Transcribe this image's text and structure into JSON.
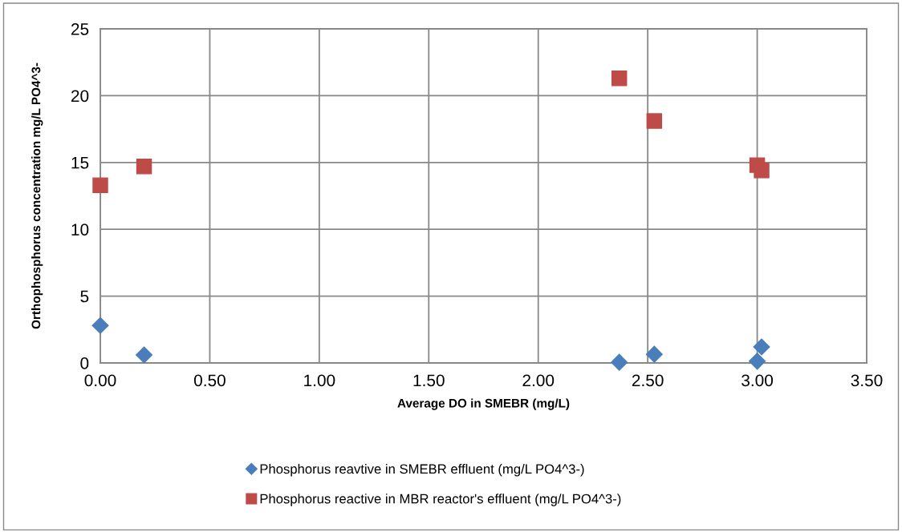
{
  "chart_data": {
    "type": "scatter",
    "xlabel": "Average DO in SMEBR (mg/L)",
    "ylabel": "Orthophosphorus concentration mg/L PO4^3-",
    "xlim": [
      0,
      3.5
    ],
    "xticks": [
      {
        "value": 0,
        "label": "0.00"
      },
      {
        "value": 0.5,
        "label": "0.50"
      },
      {
        "value": 1,
        "label": "1.00"
      },
      {
        "value": 1.5,
        "label": "1.50"
      },
      {
        "value": 2,
        "label": "2.00"
      },
      {
        "value": 2.5,
        "label": "2.50"
      },
      {
        "value": 3,
        "label": "3.00"
      },
      {
        "value": 3.5,
        "label": "3.50"
      }
    ],
    "ylim": [
      0,
      25
    ],
    "yticks": [
      0,
      5,
      10,
      15,
      20,
      25
    ],
    "grid": true,
    "legend": "bottom",
    "series": [
      {
        "name": "Phosphorus reavtive in SMEBR effluent (mg/L PO4^3-)",
        "color": "#4a7ebb",
        "marker": "diamond",
        "x": [
          0.0,
          0.2,
          2.37,
          2.53,
          3.02,
          3.0
        ],
        "values": [
          2.8,
          0.6,
          0.05,
          0.65,
          1.2,
          0.13
        ]
      },
      {
        "name": "Phosphorus reactive in MBR reactor's effluent (mg/L PO4^3-)",
        "color": "#be4b48",
        "marker": "square",
        "x": [
          0.0,
          0.2,
          2.37,
          2.53,
          3.0,
          3.02
        ],
        "values": [
          13.3,
          14.7,
          21.3,
          18.1,
          14.8,
          14.4
        ]
      }
    ]
  }
}
